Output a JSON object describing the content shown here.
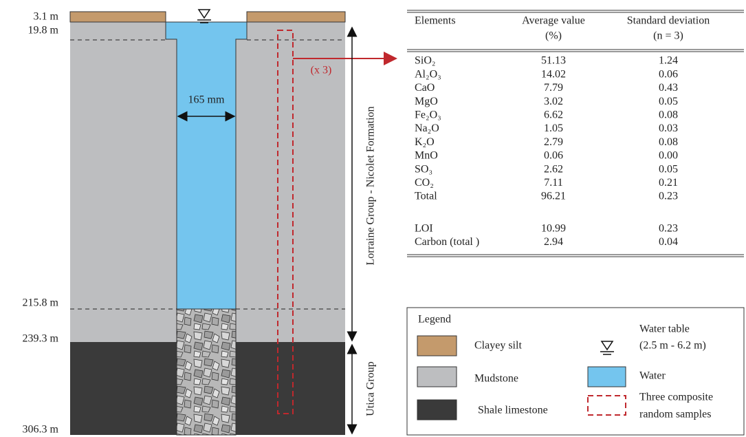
{
  "depth_labels": [
    "3.1 m",
    "19.8 m",
    "215.8 m",
    "239.3 m",
    "306.3 m"
  ],
  "diagram": {
    "width_label": "165 mm",
    "multiplier_label": "(x 3)",
    "formations": [
      "Lorraine Group - Nicolet Formation",
      "Utica Group"
    ]
  },
  "table": {
    "headers": [
      [
        "Elements"
      ],
      [
        "Average value",
        "(%)"
      ],
      [
        "Standard deviation",
        "(n = 3)"
      ]
    ],
    "rows": [
      [
        "SiO₂",
        "51.13",
        "1.24"
      ],
      [
        "Al₂O₃",
        "14.02",
        "0.06"
      ],
      [
        "CaO",
        "7.79",
        "0.43"
      ],
      [
        "MgO",
        "3.02",
        "0.05"
      ],
      [
        "Fe₂O₃",
        "6.62",
        "0.08"
      ],
      [
        "Na₂O",
        "1.05",
        "0.03"
      ],
      [
        "K₂O",
        "2.79",
        "0.08"
      ],
      [
        "MnO",
        "0.06",
        "0.00"
      ],
      [
        "SO₃",
        "2.62",
        "0.05"
      ],
      [
        "CO₂",
        "7.11",
        "0.21"
      ],
      [
        "Total",
        "96.21",
        "0.23"
      ],
      [
        "LOI",
        "10.99",
        "0.23"
      ],
      [
        "Carbon (total )",
        "2.94",
        "0.04"
      ]
    ]
  },
  "legend": {
    "title": "Legend",
    "items": [
      "Clayey silt",
      "Mudstone",
      "Shale limestone"
    ],
    "water_table": [
      "Water table",
      "(2.5 m - 6.2 m)"
    ],
    "water": "Water",
    "samples": [
      "Three composite",
      "random samples"
    ]
  }
}
